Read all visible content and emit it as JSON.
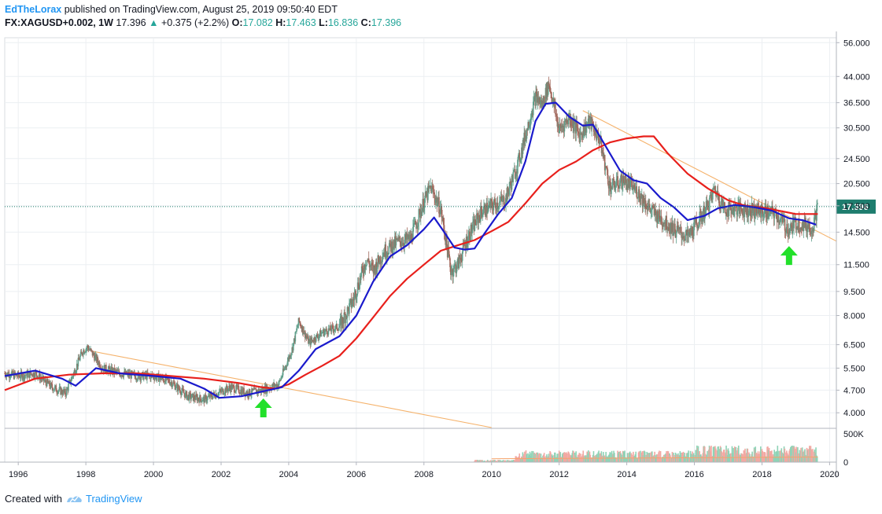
{
  "header": {
    "author": "EdTheLorax",
    "published": "published on TradingView.com, August 25, 2019 09:50:40 EDT",
    "symbol": "FX:XAGUSD+0.002, 1W",
    "last": "17.396",
    "change": "+0.375 (+2.2%)",
    "o_label": "O:",
    "o": "17.082",
    "h_label": "H:",
    "h": "17.463",
    "l_label": "L:",
    "l": "16.836",
    "c_label": "C:",
    "c": "17.396"
  },
  "footer": {
    "created_with": "Created with",
    "brand": "TradingView"
  },
  "colors": {
    "ma_fast": "#1a1acc",
    "ma_slow": "#e8201c",
    "trendline": "#f5b26b",
    "arrow": "#22e02a",
    "price_line": "#1e7d6e",
    "grid": "#eceff2",
    "candle_up": "#5f9e8a",
    "candle_down": "#a0665a"
  },
  "chart_data": {
    "type": "line",
    "title": "FX:XAGUSD, 1W",
    "y_scale": "log",
    "ylim": [
      3.6,
      58
    ],
    "xlim": [
      1995.6,
      2020.2
    ],
    "y_ticks": [
      "56.000",
      "44.000",
      "36.500",
      "30.500",
      "24.500",
      "20.500",
      "17.500",
      "14.500",
      "11.500",
      "9.500",
      "8.000",
      "6.500",
      "5.500",
      "4.700",
      "4.000"
    ],
    "x_ticks": [
      "1996",
      "1998",
      "2000",
      "2002",
      "2004",
      "2006",
      "2008",
      "2010",
      "2012",
      "2014",
      "2016",
      "2018",
      "2020"
    ],
    "last_price_label": "17.396",
    "last_price": 17.396,
    "volume_ticks": [
      "500K",
      "0"
    ],
    "volume_max": 600000,
    "series": [
      {
        "name": "",
        "role": "price",
        "x": [
          1995.6,
          1996.0,
          1996.5,
          1997.0,
          1997.4,
          1997.9,
          1998.05,
          1998.5,
          1999.0,
          1999.5,
          2000.0,
          2000.5,
          2001.0,
          2001.5,
          2001.9,
          2002.3,
          2002.8,
          2003.2,
          2003.7,
          2004.1,
          2004.3,
          2004.6,
          2005.0,
          2005.5,
          2005.9,
          2006.3,
          2006.5,
          2006.8,
          2007.2,
          2007.6,
          2008.0,
          2008.2,
          2008.5,
          2008.8,
          2009.0,
          2009.3,
          2009.7,
          2010.0,
          2010.4,
          2010.8,
          2011.0,
          2011.3,
          2011.5,
          2011.7,
          2012.0,
          2012.3,
          2012.6,
          2012.9,
          2013.2,
          2013.5,
          2013.9,
          2014.3,
          2014.7,
          2015.0,
          2015.4,
          2015.8,
          2016.0,
          2016.4,
          2016.6,
          2016.9,
          2017.2,
          2017.6,
          2018.0,
          2018.4,
          2018.8,
          2019.0,
          2019.3,
          2019.5,
          2019.65
        ],
        "values": [
          5.3,
          5.2,
          5.3,
          4.8,
          4.6,
          6.2,
          6.4,
          5.5,
          5.3,
          5.2,
          5.2,
          5.0,
          4.5,
          4.4,
          4.6,
          4.8,
          4.6,
          4.7,
          4.9,
          6.3,
          7.7,
          6.6,
          7.1,
          7.4,
          8.9,
          12.0,
          11.0,
          12.6,
          13.5,
          13.8,
          18.0,
          20.0,
          17.0,
          11.0,
          11.5,
          14.0,
          16.8,
          17.5,
          18.2,
          24.0,
          29.0,
          38.0,
          36.0,
          42.0,
          30.0,
          33.0,
          29.0,
          32.0,
          28.0,
          20.0,
          21.0,
          19.5,
          17.0,
          16.0,
          14.8,
          14.0,
          15.0,
          17.5,
          19.8,
          17.0,
          17.2,
          17.0,
          16.8,
          16.5,
          14.7,
          15.5,
          15.2,
          15.0,
          17.4
        ]
      },
      {
        "name": "",
        "role": "ma_fast",
        "x": [
          1995.6,
          1996.5,
          1997.3,
          1997.7,
          1998.3,
          1999.0,
          2000.0,
          2000.8,
          2001.5,
          2001.95,
          2002.6,
          2003.2,
          2003.8,
          2004.3,
          2004.8,
          2005.5,
          2006.0,
          2006.5,
          2007.0,
          2007.5,
          2008.0,
          2008.3,
          2008.6,
          2008.9,
          2009.2,
          2009.5,
          2009.8,
          2010.2,
          2010.6,
          2011.0,
          2011.3,
          2011.6,
          2011.9,
          2012.3,
          2012.7,
          2013.0,
          2013.4,
          2013.8,
          2014.2,
          2014.6,
          2015.0,
          2015.4,
          2015.8,
          2016.3,
          2016.7,
          2017.2,
          2017.8,
          2018.3,
          2018.8,
          2019.2,
          2019.6
        ],
        "values": [
          5.2,
          5.4,
          5.1,
          4.85,
          5.5,
          5.3,
          5.2,
          5.1,
          4.75,
          4.45,
          4.5,
          4.65,
          4.8,
          5.4,
          6.3,
          6.9,
          8.0,
          10.2,
          12.2,
          13.2,
          14.8,
          16.1,
          14.5,
          13.0,
          12.8,
          12.9,
          14.4,
          16.5,
          18.5,
          24.0,
          32.0,
          36.2,
          36.5,
          33.0,
          31.0,
          31.2,
          26.5,
          22.5,
          21.0,
          20.5,
          18.5,
          17.3,
          15.8,
          16.3,
          17.2,
          17.6,
          17.3,
          16.9,
          16.0,
          15.8,
          15.3
        ]
      },
      {
        "name": "",
        "role": "ma_slow",
        "x": [
          1995.6,
          1996.5,
          1997.5,
          1998.5,
          1999.5,
          2000.5,
          2001.5,
          2002.5,
          2003.2,
          2003.6,
          2004.0,
          2004.5,
          2005.0,
          2005.5,
          2006.0,
          2006.5,
          2007.0,
          2007.5,
          2008.0,
          2008.5,
          2009.0,
          2009.5,
          2010.0,
          2010.5,
          2011.0,
          2011.5,
          2012.0,
          2012.5,
          2013.0,
          2013.5,
          2014.0,
          2014.5,
          2014.8,
          2015.2,
          2015.8,
          2016.4,
          2017.0,
          2017.5,
          2018.0,
          2018.5,
          2019.0,
          2019.65
        ],
        "values": [
          4.7,
          5.1,
          5.25,
          5.3,
          5.3,
          5.2,
          5.1,
          4.95,
          4.8,
          4.75,
          4.9,
          5.25,
          5.6,
          6.0,
          6.8,
          7.9,
          9.2,
          10.4,
          11.5,
          12.7,
          13.2,
          13.7,
          14.6,
          15.6,
          17.8,
          20.5,
          22.6,
          24.0,
          26.0,
          27.5,
          28.3,
          28.7,
          28.7,
          25.5,
          22.0,
          19.8,
          18.2,
          17.5,
          17.3,
          16.9,
          16.5,
          16.5
        ]
      },
      {
        "name": "",
        "role": "trendline",
        "x": [
          1998.2,
          2010.0
        ],
        "values": [
          6.2,
          3.6
        ]
      },
      {
        "name": "",
        "role": "trendline",
        "x": [
          2012.7,
          2020.2
        ],
        "values": [
          34.5,
          13.6
        ]
      }
    ],
    "annotations": [
      {
        "type": "arrow-up",
        "x": 2003.25,
        "y": 4.05
      },
      {
        "type": "arrow-up",
        "x": 2018.8,
        "y": 12.0
      }
    ]
  }
}
